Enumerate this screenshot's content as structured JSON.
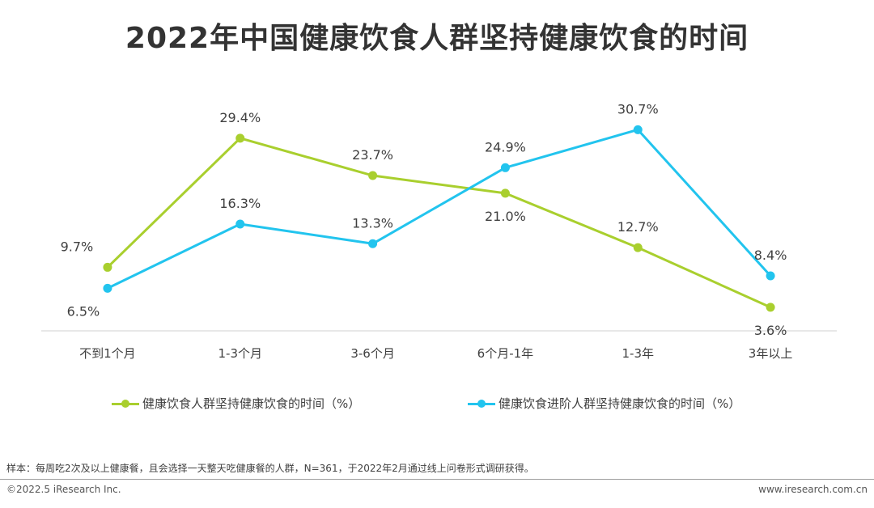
{
  "title": "2022年中国健康饮食人群坚持健康饮食的时间",
  "chart_data": {
    "type": "line",
    "categories": [
      "不到1个月",
      "1-3个月",
      "3-6个月",
      "6个月-1年",
      "1-3年",
      "3年以上"
    ],
    "series": [
      {
        "name": "健康饮食人群坚持健康饮食的时间（%）",
        "color": "#a9cf2e",
        "values": [
          9.7,
          29.4,
          23.7,
          21.0,
          12.7,
          3.6
        ],
        "labels": [
          "9.7%",
          "29.4%",
          "23.7%",
          "21.0%",
          "12.7%",
          "3.6%"
        ]
      },
      {
        "name": "健康饮食进阶人群坚持健康饮食的时间（%）",
        "color": "#22c4ee",
        "values": [
          6.5,
          16.3,
          13.3,
          24.9,
          30.7,
          8.4
        ],
        "labels": [
          "6.5%",
          "16.3%",
          "13.3%",
          "24.9%",
          "30.7%",
          "8.4%"
        ]
      }
    ],
    "ylim": [
      0,
      32
    ],
    "xlabel": "",
    "ylabel": "",
    "grid": false,
    "legend_position": "bottom"
  },
  "footer": {
    "note": "样本：每周吃2次及以上健康餐，且会选择一天整天吃健康餐的人群，N=361，于2022年2月通过线上问卷形式调研获得。",
    "copyright": "©2022.5 iResearch Inc.",
    "website": "www.iresearch.com.cn"
  }
}
